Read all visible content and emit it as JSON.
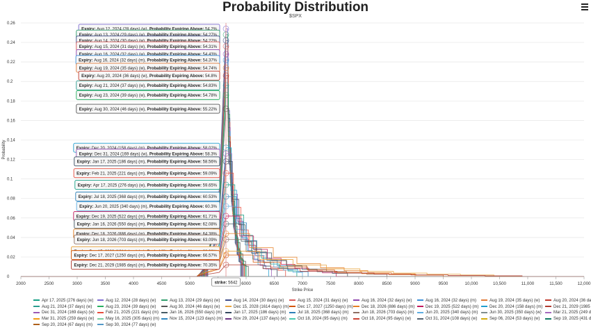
{
  "chart_data": {
    "type": "line",
    "title": "Probability Distribution",
    "subtitle": "$SPX",
    "xlabel": "Strike Price",
    "ylabel": "Probability",
    "xlim": [
      2000,
      12000
    ],
    "ylim": [
      0,
      0.26
    ],
    "x_ticks": [
      {
        "value": 2000,
        "label": "2000"
      },
      {
        "value": 2500,
        "label": "2500"
      },
      {
        "value": 3000,
        "label": "3000"
      },
      {
        "value": 3500,
        "label": "3500"
      },
      {
        "value": 4000,
        "label": "4000"
      },
      {
        "value": 4500,
        "label": "4500"
      },
      {
        "value": 5000,
        "label": "5000"
      },
      {
        "value": 5500,
        "label": "5500"
      },
      {
        "value": 6000,
        "label": "6000"
      },
      {
        "value": 6500,
        "label": "6500"
      },
      {
        "value": 7000,
        "label": "7000"
      },
      {
        "value": 7500,
        "label": "7500"
      },
      {
        "value": 8000,
        "label": "8000"
      },
      {
        "value": 8500,
        "label": "8500"
      },
      {
        "value": 9000,
        "label": "9000"
      },
      {
        "value": 9500,
        "label": "9500"
      },
      {
        "value": 10000,
        "label": "10,000"
      },
      {
        "value": 10500,
        "label": "10,500"
      },
      {
        "value": 11000,
        "label": "11,000"
      },
      {
        "value": 11500,
        "label": "11,500"
      },
      {
        "value": 12000,
        "label": "12,000"
      }
    ],
    "y_ticks": [
      {
        "value": 0,
        "label": "0"
      },
      {
        "value": 0.02,
        "label": "0.02"
      },
      {
        "value": 0.04,
        "label": "0.04"
      },
      {
        "value": 0.06,
        "label": "0.06"
      },
      {
        "value": 0.08,
        "label": "0.08"
      },
      {
        "value": 0.1,
        "label": "0.1"
      },
      {
        "value": 0.12,
        "label": "0.12"
      },
      {
        "value": 0.14,
        "label": "0.14"
      },
      {
        "value": 0.16,
        "label": "0.16"
      },
      {
        "value": 0.18,
        "label": "0.18"
      },
      {
        "value": 0.2,
        "label": "0.2"
      },
      {
        "value": 0.22,
        "label": "0.22"
      },
      {
        "value": 0.24,
        "label": "0.24"
      },
      {
        "value": 0.26,
        "label": "0.26"
      }
    ],
    "strike_marker": {
      "label": "strike:",
      "value": 5642,
      "value_label": "5642"
    },
    "tooltip_labels": {
      "expiry": "Expiry:",
      "prob": "Probability Expiring Above:"
    },
    "series": [
      {
        "name": "Aug 12, 2024 (28 days) (w)",
        "color": "#7d6bd1",
        "peak": 0.254,
        "right_tail": 5900,
        "prob_label": "54.2%"
      },
      {
        "name": "Aug 13, 2024 (29 days) (w)",
        "color": "#2f9e6b",
        "peak": 0.248,
        "right_tail": 5910,
        "prob_label": "54.27%"
      },
      {
        "name": "Aug 14, 2024 (30 days) (w)",
        "color": "#3f4d8a",
        "peak": 0.242,
        "right_tail": 5920,
        "prob_label": "54.22%"
      },
      {
        "name": "Aug 15, 2024 (31 days) (w)",
        "color": "#d65a5a",
        "peak": 0.236,
        "right_tail": 5930,
        "prob_label": "54.31%"
      },
      {
        "name": "Aug 16, 2024 (32 days) (w)",
        "color": "#8e44ad",
        "peak": 0.228,
        "right_tail": 5940,
        "prob_label": "54.43%"
      },
      {
        "name": "Aug 16, 2024 (32 days) (m)",
        "color": "#3a8fd9",
        "peak": 0.222,
        "right_tail": 5945,
        "prob_label": "54.37%"
      },
      {
        "name": "Aug 19, 2024 (35 days) (w)",
        "color": "#e07b39",
        "peak": 0.214,
        "right_tail": 5960,
        "prob_label": "54.74%"
      },
      {
        "name": "Aug 20, 2024 (36 days) (w)",
        "color": "#c0392b",
        "peak": 0.206,
        "right_tail": 5970,
        "prob_label": "54.8%"
      },
      {
        "name": "Aug 21, 2024 (37 days) (w)",
        "color": "#2a9d8f",
        "peak": 0.196,
        "right_tail": 5990,
        "prob_label": "54.83%"
      },
      {
        "name": "Aug 23, 2024 (39 days) (w)",
        "color": "#27ae60",
        "peak": 0.186,
        "right_tail": 6000,
        "prob_label": "54.78%"
      },
      {
        "name": "Aug 30, 2024 (46 days) (w)",
        "color": "#555555",
        "peak": 0.172,
        "right_tail": 6040,
        "prob_label": "55.22%"
      },
      {
        "name": "Dec 20, 2024 (158 days) (m)",
        "color": "#1f9ecf",
        "peak": 0.132,
        "right_tail": 6400,
        "prob_label": "58.02%"
      },
      {
        "name": "Dec 31, 2024 (169 days) (w)",
        "color": "#9b59b6",
        "peak": 0.126,
        "right_tail": 6450,
        "prob_label": "58.3%"
      },
      {
        "name": "Jan 17, 2025 (186 days) (m)",
        "color": "#34495e",
        "peak": 0.118,
        "right_tail": 6550,
        "prob_label": "58.56%"
      },
      {
        "name": "Feb 21, 2025 (221 days) (m)",
        "color": "#e74c3c",
        "peak": 0.106,
        "right_tail": 6700,
        "prob_label": "59.09%"
      },
      {
        "name": "Apr 17, 2025 (276 days) (w)",
        "color": "#16a085",
        "peak": 0.094,
        "right_tail": 6900,
        "prob_label": "59.65%"
      },
      {
        "name": "Jul 18, 2025 (368 days) (m)",
        "color": "#2c7fb8",
        "peak": 0.082,
        "right_tail": 7100,
        "prob_label": "60.53%"
      },
      {
        "name": "Jun 20, 2025 (340 days) (m)",
        "color": "#5dade2",
        "peak": 0.072,
        "right_tail": 7000,
        "prob_label": "60.3%"
      },
      {
        "name": "Dec 19, 2025 (522 days) (m)",
        "color": "#c2185b",
        "peak": 0.062,
        "right_tail": 7600,
        "prob_label": "61.71%"
      },
      {
        "name": "Jan 16, 2026 (550 days) (m)",
        "color": "#455a64",
        "peak": 0.054,
        "right_tail": 7800,
        "prob_label": "62.08%"
      },
      {
        "name": "Dec 18, 2026 (886 days) (m)",
        "color": "#e67e22",
        "peak": 0.044,
        "right_tail": 9000,
        "prob_label": "64.38%"
      },
      {
        "name": "Jun 18, 2026 (703 days) (m)",
        "color": "#8d6e63",
        "peak": 0.038,
        "right_tail": 8500,
        "prob_label": "63.09%"
      },
      {
        "name": "Dec 15, 2028 (1614 days) (m)",
        "color": "#e8a33d",
        "peak": 0.026,
        "right_tail": 10400,
        "prob_label": "68.09%"
      },
      {
        "name": "Dec 17, 2027 (1250 days) (m)",
        "color": "#d35400",
        "peak": 0.022,
        "right_tail": 9500,
        "prob_label": "66.57%"
      },
      {
        "name": "Dec 21, 2029 (1985 days) (m)",
        "color": "#b03a2e",
        "peak": 0.012,
        "right_tail": 10900,
        "prob_label": "70.35%"
      }
    ]
  },
  "legend": {
    "items": [
      {
        "label": "Apr 17, 2025 (276 days) (w)",
        "color": "#16a085"
      },
      {
        "label": "Aug 12, 2024 (28 days) (w)",
        "color": "#7d6bd1"
      },
      {
        "label": "Aug 13, 2024 (29 days) (w)",
        "color": "#2f9e6b"
      },
      {
        "label": "Aug 14, 2024 (30 days) (w)",
        "color": "#3f4d8a"
      },
      {
        "label": "Aug 15, 2024 (31 days) (w)",
        "color": "#d65a5a"
      },
      {
        "label": "Aug 16, 2024 (32 days) (w)",
        "color": "#8e44ad"
      },
      {
        "label": "Aug 16, 2024 (32 days) (m)",
        "color": "#3a8fd9"
      },
      {
        "label": "Aug 19, 2024 (35 days) (w)",
        "color": "#e07b39"
      },
      {
        "label": "Aug 20, 2024 (36 days) (w)",
        "color": "#c0392b"
      },
      {
        "label": "Aug 21, 2024 (37 days) (w)",
        "color": "#2a9d8f"
      },
      {
        "label": "Aug 23, 2024 (39 days) (w)",
        "color": "#27ae60"
      },
      {
        "label": "Aug 30, 2024 (46 days) (w)",
        "color": "#555555"
      },
      {
        "label": "Dec 15, 2028 (1614 days) (m)",
        "color": "#e8a33d"
      },
      {
        "label": "Dec 17, 2027 (1250 days) (m)",
        "color": "#d35400"
      },
      {
        "label": "Dec 18, 2026 (886 days) (m)",
        "color": "#e67e22"
      },
      {
        "label": "Dec 19, 2025 (522 days) (m)",
        "color": "#c2185b"
      },
      {
        "label": "Dec 20, 2024 (158 days) (m)",
        "color": "#1f9ecf"
      },
      {
        "label": "Dec 21, 2029 (1985 days) (m)",
        "color": "#b03a2e"
      },
      {
        "label": "Dec 31, 2024 (169 days) (w)",
        "color": "#9b59b6"
      },
      {
        "label": "Feb 21, 2025 (221 days) (m)",
        "color": "#e74c3c"
      },
      {
        "label": "Jan 16, 2026 (550 days) (m)",
        "color": "#455a64"
      },
      {
        "label": "Jan 17, 2025 (186 days) (m)",
        "color": "#34495e"
      },
      {
        "label": "Jul 18, 2025 (368 days) (m)",
        "color": "#2c7fb8"
      },
      {
        "label": "Jun 18, 2026 (703 days) (m)",
        "color": "#8d6e63"
      },
      {
        "label": "Jun 20, 2025 (340 days) (m)",
        "color": "#5dade2"
      },
      {
        "label": "Jun 30, 2025 (350 days) (w)",
        "color": "#7f8c8d"
      },
      {
        "label": "Mar 21, 2025 (249 days) (m)",
        "color": "#a569bd"
      },
      {
        "label": "Mar 31, 2025 (259 days) (w)",
        "color": "#f39c12"
      },
      {
        "label": "May 16, 2025 (305 days) (m)",
        "color": "#7dcea0"
      },
      {
        "label": "Nov 15, 2024 (123 days) (m)",
        "color": "#2e86c1"
      },
      {
        "label": "Nov 29, 2024 (137 days) (w)",
        "color": "#6c3483"
      },
      {
        "label": "Oct 18, 2024 (95 days) (m)",
        "color": "#48c9b0"
      },
      {
        "label": "Oct 18, 2024 (95 days) (w)",
        "color": "#cb4335"
      },
      {
        "label": "Oct 31, 2024 (108 days) (w)",
        "color": "#566573"
      },
      {
        "label": "Sep 06, 2024 (53 days) (w)",
        "color": "#d4ac0d"
      },
      {
        "label": "Sep 19, 2025 (431 days) (m)",
        "color": "#117a65"
      },
      {
        "label": "Sep 20, 2024 (67 days) (m)",
        "color": "#af601a"
      },
      {
        "label": "Sep 30, 2024 (77 days) (w)",
        "color": "#5499c7"
      }
    ]
  }
}
